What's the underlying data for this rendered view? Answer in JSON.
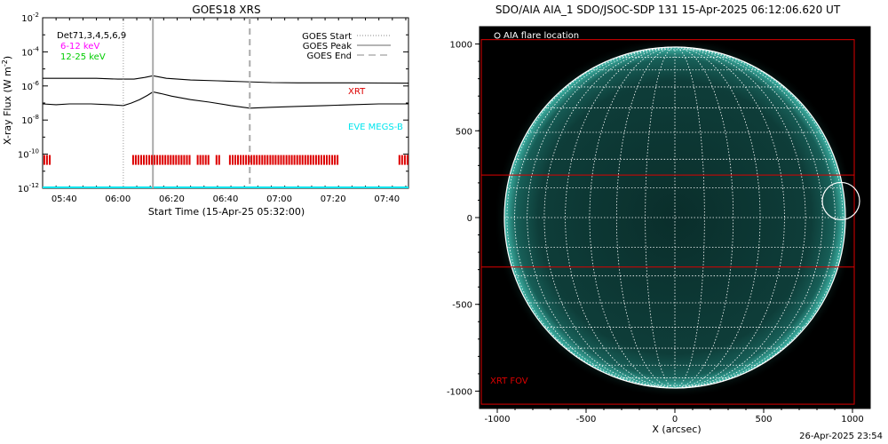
{
  "chart_data": [
    {
      "type": "line",
      "title": "GOES18 XRS",
      "xlabel": "Start Time (15-Apr-25 05:32:00)",
      "ylabel": "X-ray Flux (W m",
      "ylabel_sup": "-2",
      "ylabel_close": ")",
      "x_range_minutes": [
        0,
        136
      ],
      "ylim_log10": [
        -12,
        -2
      ],
      "y_scale": "log",
      "y_ticks": [
        {
          "base": "10",
          "exp": "-2",
          "log": -2
        },
        {
          "base": "10",
          "exp": "-4",
          "log": -4
        },
        {
          "base": "10",
          "exp": "-6",
          "log": -6
        },
        {
          "base": "10",
          "exp": "-8",
          "log": -8
        },
        {
          "base": "10",
          "exp": "-10",
          "log": -10
        },
        {
          "base": "10",
          "exp": "-12",
          "log": -12
        }
      ],
      "x_ticks": [
        {
          "label": "05:40",
          "min": 8
        },
        {
          "label": "06:00",
          "min": 28
        },
        {
          "label": "06:20",
          "min": 48
        },
        {
          "label": "06:40",
          "min": 68
        },
        {
          "label": "07:00",
          "min": 88
        },
        {
          "label": "07:20",
          "min": 108
        },
        {
          "label": "07:40",
          "min": 128
        }
      ],
      "legend_left": {
        "detectors": "Det71,3,4,5,6,9",
        "band1": "6-12 keV",
        "band2": "12-25 keV",
        "band1_color": "#ff00ff",
        "band2_color": "#00cc00"
      },
      "legend_right": {
        "start": "GOES Start",
        "peak": "GOES Peak",
        "end": "GOES End"
      },
      "annotations": {
        "xrt": "XRT",
        "xrt_color": "#dd0000",
        "eve": "EVE MEGS-B",
        "eve_color": "#00e5ee"
      },
      "goes_events_min": {
        "start": 30,
        "peak": 41,
        "end": 77
      },
      "series": [
        {
          "color": "#000000",
          "x": [
            0,
            10,
            20,
            28,
            34,
            38,
            41,
            46,
            55,
            65,
            75,
            85,
            95,
            105,
            115,
            125,
            136
          ],
          "logy": [
            -5.55,
            -5.55,
            -5.55,
            -5.6,
            -5.6,
            -5.5,
            -5.4,
            -5.55,
            -5.65,
            -5.7,
            -5.75,
            -5.8,
            -5.82,
            -5.82,
            -5.82,
            -5.83,
            -5.84
          ]
        },
        {
          "color": "#000000",
          "x": [
            0,
            5,
            10,
            18,
            25,
            30,
            33,
            36,
            39,
            41,
            44,
            48,
            55,
            62,
            70,
            77,
            85,
            95,
            105,
            115,
            125,
            136
          ],
          "logy": [
            -7.05,
            -7.1,
            -7.05,
            -7.05,
            -7.1,
            -7.15,
            -7.0,
            -6.8,
            -6.55,
            -6.35,
            -6.45,
            -6.6,
            -6.8,
            -6.95,
            -7.15,
            -7.3,
            -7.25,
            -7.2,
            -7.15,
            -7.1,
            -7.05,
            -7.05
          ]
        },
        {
          "color": "#00e5ee",
          "x": [
            0,
            136
          ],
          "logy": [
            -11.95,
            -11.95
          ]
        }
      ],
      "xrt_coverage_min": [
        [
          0,
          3
        ],
        [
          33,
          55
        ],
        [
          57,
          62
        ],
        [
          64,
          66
        ],
        [
          69,
          110
        ],
        [
          132,
          136
        ]
      ]
    },
    {
      "type": "scatter",
      "title": "SDO/AIA AIA_1 SDO/JSOC-SDP 131 15-Apr-2025 06:12:06.620 UT",
      "xlabel": "X (arcsec)",
      "xlim": [
        -1100,
        1100
      ],
      "ylim": [
        -1100,
        1100
      ],
      "x_ticks": [
        "-1000",
        "-500",
        "0",
        "500",
        "1000"
      ],
      "x_tick_values": [
        -1000,
        -500,
        0,
        500,
        1000
      ],
      "y_ticks": [
        "1000",
        "500",
        "0",
        "-500",
        "-1000"
      ],
      "y_tick_values": [
        1000,
        500,
        0,
        -500,
        -1000
      ],
      "legend": "AIA flare location",
      "solar_radius_arcsec": 960,
      "flare_location": {
        "x": 935,
        "y": 95,
        "r": 105
      },
      "xrt_fov_label": "XRT FOV",
      "xrt_fov_outer": {
        "x1": -1090,
        "y1": -1075,
        "x2": 1010,
        "y2": 1025
      },
      "xrt_fov_inner": {
        "x1": -1090,
        "y1": -285,
        "x2": 1010,
        "y2": 245
      },
      "disk_color": "#0c3a36",
      "limb_color": "#2aa79a",
      "grid_color": "#ffffff",
      "fov_color": "#dd0000"
    }
  ],
  "footer": {
    "timestamp": "26-Apr-2025 23:54"
  }
}
